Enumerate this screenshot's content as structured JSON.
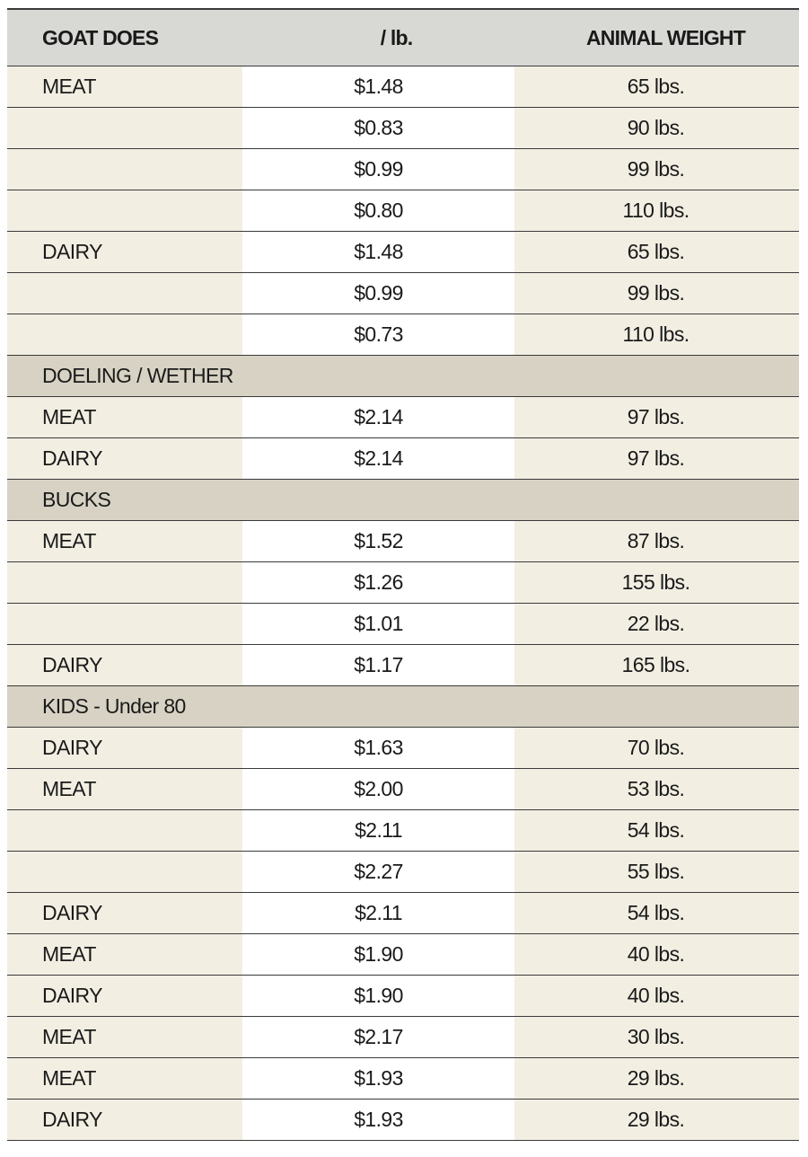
{
  "header": {
    "col1": "GOAT DOES",
    "col2": "/ lb.",
    "col3": "ANIMAL WEIGHT"
  },
  "rows": [
    {
      "kind": "data",
      "type": "MEAT",
      "price": "$1.48",
      "weight": "65 lbs."
    },
    {
      "kind": "data",
      "type": "",
      "price": "$0.83",
      "weight": "90 lbs."
    },
    {
      "kind": "data",
      "type": "",
      "price": "$0.99",
      "weight": "99 lbs."
    },
    {
      "kind": "data",
      "type": "",
      "price": "$0.80",
      "weight": "110 lbs."
    },
    {
      "kind": "data",
      "type": "DAIRY",
      "price": "$1.48",
      "weight": "65 lbs."
    },
    {
      "kind": "data",
      "type": "",
      "price": "$0.99",
      "weight": "99 lbs."
    },
    {
      "kind": "data",
      "type": "",
      "price": "$0.73",
      "weight": "110 lbs."
    },
    {
      "kind": "section",
      "label": "DOELING / WETHER"
    },
    {
      "kind": "data",
      "type": "MEAT",
      "price": "$2.14",
      "weight": "97 lbs."
    },
    {
      "kind": "data",
      "type": "DAIRY",
      "price": "$2.14",
      "weight": "97 lbs."
    },
    {
      "kind": "section",
      "label": "BUCKS"
    },
    {
      "kind": "data",
      "type": "MEAT",
      "price": "$1.52",
      "weight": "87 lbs."
    },
    {
      "kind": "data",
      "type": "",
      "price": "$1.26",
      "weight": "155 lbs."
    },
    {
      "kind": "data",
      "type": "",
      "price": "$1.01",
      "weight": "22 lbs."
    },
    {
      "kind": "data",
      "type": "DAIRY",
      "price": "$1.17",
      "weight": "165 lbs."
    },
    {
      "kind": "section",
      "label": "KIDS - Under 80"
    },
    {
      "kind": "data",
      "type": "DAIRY",
      "price": "$1.63",
      "weight": "70 lbs."
    },
    {
      "kind": "data",
      "type": "MEAT",
      "price": "$2.00",
      "weight": "53 lbs."
    },
    {
      "kind": "data",
      "type": "",
      "price": "$2.11",
      "weight": "54 lbs."
    },
    {
      "kind": "data",
      "type": "",
      "price": "$2.27",
      "weight": "55 lbs."
    },
    {
      "kind": "data",
      "type": "DAIRY",
      "price": "$2.11",
      "weight": "54 lbs."
    },
    {
      "kind": "data",
      "type": "MEAT",
      "price": "$1.90",
      "weight": "40 lbs."
    },
    {
      "kind": "data",
      "type": "DAIRY",
      "price": "$1.90",
      "weight": "40 lbs."
    },
    {
      "kind": "data",
      "type": "MEAT",
      "price": "$2.17",
      "weight": "30 lbs."
    },
    {
      "kind": "data",
      "type": "MEAT",
      "price": "$1.93",
      "weight": "29 lbs."
    },
    {
      "kind": "data",
      "type": "DAIRY",
      "price": "$1.93",
      "weight": "29 lbs."
    }
  ],
  "colors": {
    "header_bg": "#d8d9d5",
    "section_bg": "#d7d2c3",
    "tint_bg": "#f2eee2",
    "rule": "#3a3a3a"
  }
}
